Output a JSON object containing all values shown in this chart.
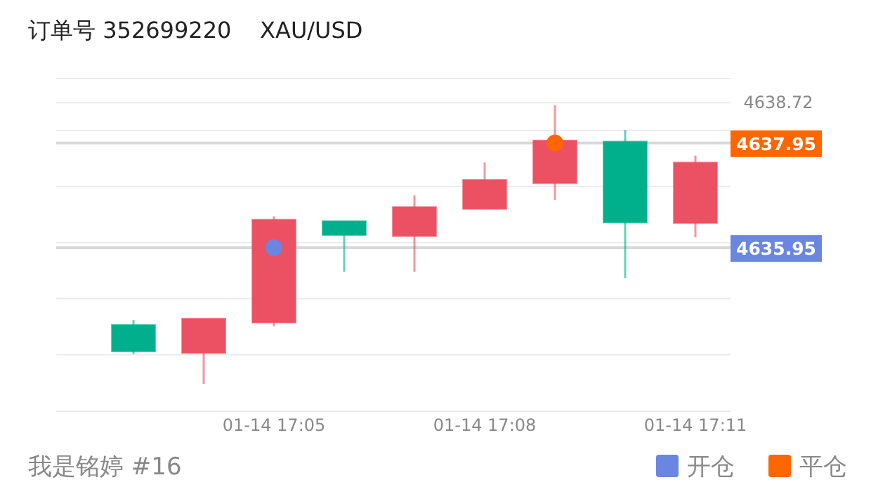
{
  "chart_data": {
    "type": "candlestick",
    "title": "订单号 352699220    XAU/USD",
    "categories": [
      null,
      null,
      "01-14 17:05",
      null,
      null,
      "01-14 17:08",
      null,
      null,
      "01-14 17:11"
    ],
    "ohlc": [
      [
        4633.97,
        4634.57,
        4633.92,
        4634.48
      ],
      [
        4634.6,
        4634.6,
        4633.35,
        4633.94
      ],
      [
        4636.49,
        4636.55,
        4634.45,
        4634.52
      ],
      [
        4636.19,
        4636.46,
        4635.49,
        4636.46
      ],
      [
        4636.73,
        4636.95,
        4635.49,
        4636.17
      ],
      [
        4637.25,
        4637.58,
        4636.69,
        4636.69
      ],
      [
        4638.0,
        4638.67,
        4636.86,
        4637.18
      ],
      [
        4636.43,
        4638.2,
        4635.37,
        4637.98
      ],
      [
        4637.58,
        4637.71,
        4636.15,
        4636.42
      ]
    ],
    "colors": [
      "#00b08d",
      "#eb5163",
      "#eb5163",
      "#00b08d",
      "#eb5163",
      "#eb5163",
      "#eb5163",
      "#00b08d",
      "#eb5163"
    ],
    "series": [
      {
        "type": "scatter",
        "name": "开仓",
        "color": "#6b86e0",
        "values": [
          null,
          null,
          4635.95,
          null,
          null,
          null,
          null,
          null,
          null
        ]
      },
      {
        "type": "scatter",
        "name": "平仓",
        "color": "#ff6600",
        "values": [
          null,
          null,
          null,
          null,
          null,
          null,
          4637.95,
          null,
          null
        ]
      }
    ],
    "ylim": [
      4632.83,
      4639.18
    ],
    "yticks": [
      {
        "value": 4632.83,
        "label": null
      },
      {
        "value": 4633.91,
        "label": null
      },
      {
        "value": 4634.98,
        "label": null
      },
      {
        "value": 4636.05,
        "label": null
      },
      {
        "value": 4637.12,
        "label": null
      },
      {
        "value": 4638.19,
        "label": null
      },
      {
        "value": 4639.18,
        "label": null
      },
      {
        "value": 4638.72,
        "label": "4638.72"
      },
      {
        "value": 4637.95,
        "label": "4637.95"
      },
      {
        "value": 4635.95,
        "label": "4635.95"
      }
    ],
    "grid": "y",
    "legend": "bottom right",
    "marker": "circle",
    "annotations": [
      "我是铭婷 #16"
    ]
  }
}
